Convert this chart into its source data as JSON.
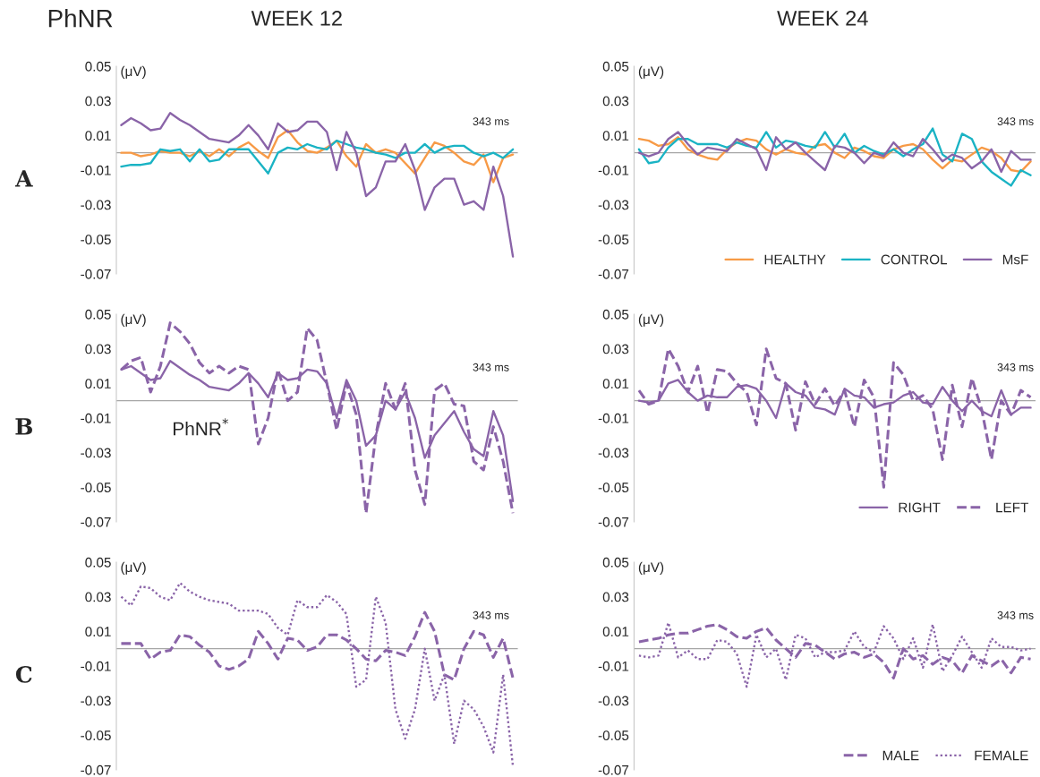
{
  "chart_data": [
    {
      "type": "line",
      "title": "WEEK 12",
      "ylabel": "(μV)",
      "annotations": [
        "PhNR",
        "A",
        "343 ms"
      ],
      "categories": [
        null,
        null,
        null,
        null,
        null,
        null,
        null,
        null,
        null,
        null,
        null,
        null,
        null,
        null,
        null,
        null,
        null,
        null,
        null,
        null,
        null,
        null,
        null,
        null,
        null,
        null,
        null,
        null,
        null,
        null,
        null,
        null,
        null,
        null,
        null,
        null,
        null,
        null,
        null,
        null,
        null
      ],
      "series": [
        {
          "color": "#f79a46",
          "line_style": "solid",
          "values": [
            0,
            0,
            -0.002,
            -0.001,
            0.001,
            0,
            0,
            -0.002,
            0.001,
            -0.002,
            0.002,
            -0.002,
            0.003,
            0.006,
            0.001,
            -0.003,
            0.009,
            0.013,
            0.006,
            0.001,
            0,
            0.003,
            0.007,
            -0.002,
            -0.008,
            0.005,
            0,
            0.002,
            0,
            -0.006,
            -0.012,
            -0.003,
            0.006,
            0.004,
            0,
            -0.005,
            -0.007,
            -0.001,
            -0.017,
            -0.003,
            -0.001
          ]
        },
        {
          "color": "#1ab3c4",
          "line_style": "solid",
          "values": [
            -0.008,
            -0.007,
            -0.007,
            -0.006,
            0.002,
            0.001,
            0.002,
            -0.005,
            0.002,
            -0.005,
            -0.004,
            0.002,
            0.002,
            0.002,
            -0.005,
            -0.012,
            0,
            0.003,
            0.002,
            0.005,
            0.003,
            0.002,
            0.007,
            0.005,
            0.003,
            0.002,
            0,
            -0.001,
            -0.003,
            0,
            0,
            0.005,
            0,
            0.003,
            0.004,
            0.004,
            0,
            -0.002,
            0,
            -0.003,
            0.002
          ]
        },
        {
          "color": "#8a64a8",
          "line_style": "solid",
          "values": [
            0.016,
            0.02,
            0.017,
            0.013,
            0.014,
            0.023,
            0.019,
            0.016,
            0.012,
            0.008,
            0.007,
            0.006,
            0.01,
            0.016,
            0.01,
            0.002,
            0.017,
            0.012,
            0.013,
            0.018,
            0.018,
            0.012,
            -0.01,
            0.012,
            0,
            -0.025,
            -0.02,
            -0.005,
            -0.005,
            0.005,
            -0.01,
            -0.033,
            -0.02,
            -0.015,
            -0.015,
            -0.03,
            -0.028,
            -0.033,
            -0.008,
            -0.025,
            -0.06
          ]
        }
      ],
      "ylim": [
        -0.07,
        0.05
      ],
      "yticks": [
        -0.07,
        -0.05,
        -0.03,
        -0.01,
        0.01,
        0.03,
        0.05
      ],
      "ref_lines": [
        {
          "axis": "y",
          "value": 0,
          "color": "#a6a6a6"
        }
      ]
    },
    {
      "type": "line",
      "ylabel": "(μV)",
      "annotations": [
        "B",
        "343 ms",
        "PhNR$^{*}$"
      ],
      "categories": [
        null,
        null,
        null,
        null,
        null,
        null,
        null,
        null,
        null,
        null,
        null,
        null,
        null,
        null,
        null,
        null,
        null,
        null,
        null,
        null,
        null,
        null,
        null,
        null,
        null,
        null,
        null,
        null,
        null,
        null,
        null,
        null,
        null,
        null,
        null,
        null,
        null,
        null,
        null,
        null,
        null
      ],
      "series": [
        {
          "color": "#8a64a8",
          "line_style": "solid",
          "values": [
            0.018,
            0.02,
            0.016,
            0.012,
            0.013,
            0.023,
            0.019,
            0.015,
            0.012,
            0.008,
            0.007,
            0.006,
            0.01,
            0.016,
            0.01,
            0.002,
            0.016,
            0.012,
            0.013,
            0.018,
            0.017,
            0.01,
            -0.01,
            0.012,
            0,
            -0.026,
            -0.02,
            0,
            -0.005,
            0.005,
            -0.01,
            -0.033,
            -0.02,
            -0.013,
            -0.006,
            -0.018,
            -0.028,
            -0.032,
            -0.006,
            -0.02,
            -0.058
          ]
        },
        {
          "color": "#8a64a8",
          "line_style": "dashed",
          "values": [
            0.018,
            0.023,
            0.025,
            0.005,
            0.02,
            0.045,
            0.04,
            0.033,
            0.022,
            0.016,
            0.02,
            0.016,
            0.02,
            0.018,
            -0.025,
            -0.01,
            0.018,
            0,
            0.005,
            0.042,
            0.035,
            0.01,
            -0.017,
            0.01,
            -0.008,
            -0.065,
            -0.02,
            0.01,
            -0.005,
            0.01,
            -0.04,
            -0.06,
            0.006,
            0.01,
            -0.002,
            -0.003,
            -0.035,
            -0.04,
            -0.015,
            -0.035,
            -0.065
          ]
        }
      ],
      "ylim": [
        -0.07,
        0.05
      ],
      "yticks": [
        -0.07,
        -0.05,
        -0.03,
        -0.01,
        0.01,
        0.03,
        0.05
      ],
      "ref_lines": [
        {
          "axis": "y",
          "value": 0,
          "color": "#a6a6a6"
        }
      ]
    },
    {
      "type": "line",
      "ylabel": "(μV)",
      "annotations": [
        "C",
        "343 ms"
      ],
      "categories": [
        null,
        null,
        null,
        null,
        null,
        null,
        null,
        null,
        null,
        null,
        null,
        null,
        null,
        null,
        null,
        null,
        null,
        null,
        null,
        null,
        null,
        null,
        null,
        null,
        null,
        null,
        null,
        null,
        null,
        null,
        null,
        null,
        null,
        null,
        null,
        null,
        null,
        null,
        null,
        null,
        null
      ],
      "series": [
        {
          "color": "#8a64a8",
          "line_style": "dashed",
          "values": [
            0.003,
            0.003,
            0.003,
            -0.006,
            -0.002,
            -0.001,
            0.008,
            0.007,
            0.002,
            -0.002,
            -0.01,
            -0.012,
            -0.01,
            -0.006,
            0.01,
            0.003,
            -0.006,
            0.006,
            0.005,
            -0.001,
            0.001,
            0.008,
            0.008,
            0.005,
            0,
            -0.006,
            -0.007,
            -0.001,
            -0.002,
            -0.004,
            0.007,
            0.021,
            0.01,
            -0.015,
            -0.018,
            0,
            0.01,
            0.008,
            -0.005,
            0.006,
            -0.017
          ]
        },
        {
          "color": "#8a64a8",
          "line_style": "dotted",
          "values": [
            0.03,
            0.025,
            0.036,
            0.035,
            0.03,
            0.028,
            0.038,
            0.033,
            0.03,
            0.028,
            0.027,
            0.026,
            0.022,
            0.022,
            0.022,
            0.02,
            0.012,
            0.008,
            0.028,
            0.024,
            0.024,
            0.031,
            0.027,
            0.02,
            -0.022,
            -0.018,
            0.03,
            0.015,
            -0.035,
            -0.052,
            -0.035,
            0,
            -0.03,
            -0.015,
            -0.055,
            -0.03,
            -0.035,
            -0.045,
            -0.06,
            -0.015,
            -0.068
          ]
        }
      ],
      "ylim": [
        -0.07,
        0.05
      ],
      "yticks": [
        -0.07,
        -0.05,
        -0.03,
        -0.01,
        0.01,
        0.03,
        0.05
      ],
      "ref_lines": [
        {
          "axis": "y",
          "value": 0,
          "color": "#a6a6a6"
        }
      ]
    },
    {
      "type": "line",
      "title": "WEEK 24",
      "ylabel": "(μV)",
      "annotations": [
        "343 ms"
      ],
      "categories": [
        null,
        null,
        null,
        null,
        null,
        null,
        null,
        null,
        null,
        null,
        null,
        null,
        null,
        null,
        null,
        null,
        null,
        null,
        null,
        null,
        null,
        null,
        null,
        null,
        null,
        null,
        null,
        null,
        null,
        null,
        null,
        null,
        null,
        null,
        null,
        null,
        null,
        null,
        null,
        null,
        null
      ],
      "series": [
        {
          "name": "HEALTHY",
          "color": "#f79a46",
          "line_style": "solid",
          "values": [
            0.008,
            0.007,
            0.004,
            0.005,
            0.009,
            0.002,
            -0.001,
            -0.003,
            -0.004,
            0.002,
            0.006,
            0.008,
            0.007,
            0.002,
            -0.001,
            0.002,
            0,
            -0.001,
            0.004,
            0.005,
            0,
            -0.003,
            0.003,
            0.001,
            -0.002,
            -0.003,
            0.002,
            0.004,
            0.005,
            0.002,
            -0.004,
            -0.009,
            -0.004,
            -0.005,
            -0.001,
            0.003,
            0.001,
            -0.003,
            -0.01,
            -0.011,
            -0.005
          ]
        },
        {
          "name": "CONTROL",
          "color": "#1ab3c4",
          "line_style": "solid",
          "values": [
            0.002,
            -0.006,
            -0.005,
            0.003,
            0.008,
            0.008,
            0.005,
            0.005,
            0.005,
            0.003,
            0.006,
            0.004,
            0.003,
            0.012,
            0.003,
            0.007,
            0.006,
            0.004,
            0.003,
            0.012,
            0.003,
            0.011,
            0,
            0.004,
            0.001,
            -0.001,
            0.002,
            -0.002,
            0.002,
            0.005,
            0.014,
            -0.001,
            -0.005,
            0.011,
            0.008,
            -0.005,
            -0.011,
            -0.015,
            -0.019,
            -0.01,
            -0.013
          ]
        },
        {
          "name": "MsF",
          "color": "#8a64a8",
          "line_style": "solid",
          "values": [
            0,
            -0.002,
            0,
            0.008,
            0.012,
            0.005,
            -0.001,
            0.003,
            0.002,
            0.001,
            0.008,
            0.005,
            0.002,
            -0.01,
            0.009,
            0.002,
            0.006,
            0,
            -0.005,
            -0.01,
            0.004,
            0.003,
            0,
            -0.006,
            0,
            -0.002,
            0.006,
            0,
            -0.002,
            0.008,
            0.002,
            -0.005,
            -0.001,
            -0.003,
            -0.009,
            -0.005,
            0.002,
            -0.011,
            0.001,
            -0.004,
            -0.004
          ]
        }
      ],
      "ylim": [
        -0.07,
        0.05
      ],
      "yticks": [
        -0.07,
        -0.05,
        -0.03,
        -0.01,
        0.01,
        0.03,
        0.05
      ],
      "legend": "bottom right",
      "ref_lines": [
        {
          "axis": "y",
          "value": 0,
          "color": "#a6a6a6"
        }
      ]
    },
    {
      "type": "line",
      "ylabel": "(μV)",
      "annotations": [
        "343 ms"
      ],
      "categories": [
        null,
        null,
        null,
        null,
        null,
        null,
        null,
        null,
        null,
        null,
        null,
        null,
        null,
        null,
        null,
        null,
        null,
        null,
        null,
        null,
        null,
        null,
        null,
        null,
        null,
        null,
        null,
        null,
        null,
        null,
        null,
        null,
        null,
        null,
        null,
        null,
        null,
        null,
        null,
        null,
        null
      ],
      "series": [
        {
          "name": "RIGHT",
          "color": "#8a64a8",
          "line_style": "solid",
          "values": [
            0,
            -0.001,
            0,
            0.01,
            0.012,
            0.005,
            0,
            0.003,
            0.002,
            0.002,
            0.008,
            0.009,
            0.007,
            0,
            -0.01,
            0.01,
            0.005,
            0.003,
            -0.004,
            -0.005,
            -0.008,
            0.007,
            0.003,
            0.002,
            -0.004,
            -0.002,
            -0.001,
            0.003,
            0.005,
            -0.001,
            -0.002,
            0.008,
            0,
            -0.006,
            0,
            -0.006,
            -0.009,
            0.006,
            -0.008,
            -0.004,
            -0.004
          ]
        },
        {
          "name": "LEFT",
          "color": "#8a64a8",
          "line_style": "dashed",
          "values": [
            0.006,
            -0.002,
            0,
            0.03,
            0.02,
            0.005,
            0.02,
            -0.007,
            0.018,
            0.017,
            0.01,
            0.005,
            -0.014,
            0.03,
            0.013,
            0.01,
            -0.017,
            0.011,
            -0.002,
            0.007,
            -0.003,
            0.006,
            -0.015,
            0.012,
            0.002,
            -0.05,
            0.022,
            0.015,
            0,
            0.003,
            -0.005,
            -0.034,
            0.009,
            -0.015,
            0.013,
            -0.005,
            -0.034,
            0,
            -0.008,
            0.006,
            0.002
          ]
        }
      ],
      "ylim": [
        -0.07,
        0.05
      ],
      "yticks": [
        -0.07,
        -0.05,
        -0.03,
        -0.01,
        0.01,
        0.03,
        0.05
      ],
      "legend": "bottom right",
      "ref_lines": [
        {
          "axis": "y",
          "value": 0,
          "color": "#a6a6a6"
        }
      ]
    },
    {
      "type": "line",
      "ylabel": "(μV)",
      "annotations": [
        "343 ms"
      ],
      "categories": [
        null,
        null,
        null,
        null,
        null,
        null,
        null,
        null,
        null,
        null,
        null,
        null,
        null,
        null,
        null,
        null,
        null,
        null,
        null,
        null,
        null,
        null,
        null,
        null,
        null,
        null,
        null,
        null,
        null,
        null,
        null,
        null,
        null,
        null,
        null,
        null,
        null,
        null,
        null,
        null,
        null
      ],
      "series": [
        {
          "name": "MALE",
          "color": "#8a64a8",
          "line_style": "dashed",
          "values": [
            0.004,
            0.005,
            0.006,
            0.008,
            0.009,
            0.009,
            0.011,
            0.013,
            0.014,
            0.011,
            0.007,
            0.006,
            0.01,
            0.012,
            0.005,
            0,
            -0.005,
            0.003,
            0.002,
            -0.002,
            -0.006,
            -0.003,
            -0.002,
            -0.005,
            -0.003,
            -0.008,
            -0.017,
            0,
            -0.006,
            -0.004,
            -0.009,
            -0.005,
            -0.007,
            -0.014,
            -0.004,
            -0.007,
            -0.01,
            -0.006,
            -0.014,
            -0.005,
            -0.006
          ]
        },
        {
          "name": "FEMALE",
          "color": "#8a64a8",
          "line_style": "dotted",
          "values": [
            -0.004,
            -0.005,
            -0.004,
            0.015,
            -0.005,
            -0.001,
            -0.006,
            -0.006,
            0.005,
            0.004,
            -0.003,
            -0.022,
            0.008,
            -0.005,
            0,
            -0.018,
            0.008,
            0.006,
            -0.005,
            -0.002,
            -0.002,
            -0.001,
            0.01,
            0.001,
            -0.002,
            0.013,
            0.006,
            -0.006,
            0.006,
            -0.011,
            0.014,
            -0.013,
            -0.004,
            0.007,
            -0.002,
            -0.011,
            0.006,
            0.001,
            0.001,
            -0.001,
            0
          ]
        }
      ],
      "ylim": [
        -0.07,
        0.05
      ],
      "yticks": [
        -0.07,
        -0.05,
        -0.03,
        -0.01,
        0.01,
        0.03,
        0.05
      ],
      "legend": "bottom right",
      "ref_lines": [
        {
          "axis": "y",
          "value": 0,
          "color": "#a6a6a6"
        }
      ]
    }
  ]
}
